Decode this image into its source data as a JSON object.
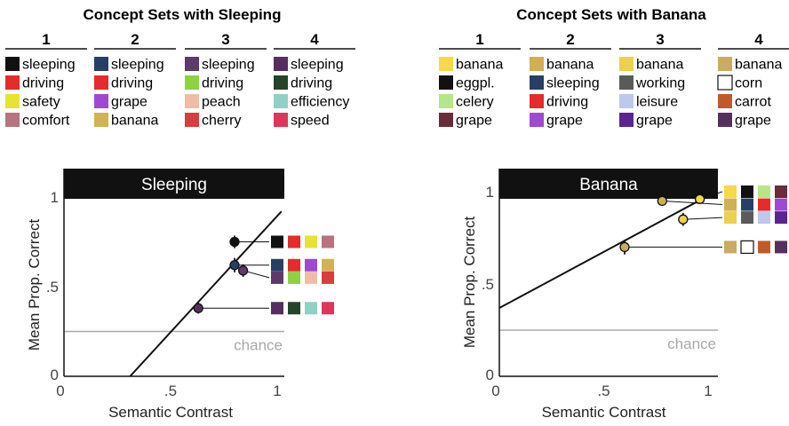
{
  "chart_data": [
    {
      "type": "scatter",
      "title": "Sleeping",
      "xlabel": "Semantic Contrast",
      "ylabel": "Mean Prop. Correct",
      "xlim": [
        0,
        1
      ],
      "ylim": [
        0,
        1
      ],
      "x_ticks": [
        "0",
        ".5",
        "1"
      ],
      "y_ticks": [
        "0",
        ".5",
        "1"
      ],
      "chance_label": "chance",
      "chance_value": 0.25,
      "fit_line": [
        [
          0.31,
          0
        ],
        [
          1.02,
          0.92
        ]
      ],
      "legend": {
        "title": "Concept Sets with Sleeping",
        "columns": [
          {
            "label": "1",
            "items": [
              {
                "label": "sleeping",
                "color": "#111111"
              },
              {
                "label": "driving",
                "color": "#e52b2b"
              },
              {
                "label": "safety",
                "color": "#e6e334"
              },
              {
                "label": "comfort",
                "color": "#b9737e"
              }
            ]
          },
          {
            "label": "2",
            "items": [
              {
                "label": "sleeping",
                "color": "#283f64"
              },
              {
                "label": "driving",
                "color": "#e52b2b"
              },
              {
                "label": "grape",
                "color": "#9e4ad0"
              },
              {
                "label": "banana",
                "color": "#d2b254"
              }
            ]
          },
          {
            "label": "3",
            "items": [
              {
                "label": "sleeping",
                "color": "#5e3a6a"
              },
              {
                "label": "driving",
                "color": "#8ed244"
              },
              {
                "label": "peach",
                "color": "#efbda7"
              },
              {
                "label": "cherry",
                "color": "#d83e3e"
              }
            ]
          },
          {
            "label": "4",
            "items": [
              {
                "label": "sleeping",
                "color": "#55305e"
              },
              {
                "label": "driving",
                "color": "#26442a"
              },
              {
                "label": "efficiency",
                "color": "#8fd1c5"
              },
              {
                "label": "speed",
                "color": "#dc3759"
              }
            ]
          }
        ]
      },
      "points": [
        {
          "x": 0.8,
          "y": 0.75,
          "color": "#111111",
          "err": 0.035,
          "set": 1,
          "palette": [
            "#111111",
            "#e52b2b",
            "#e6e334",
            "#b9737e"
          ],
          "palette_y": 0.75
        },
        {
          "x": 0.8,
          "y": 0.62,
          "color": "#283f64",
          "err": 0.04,
          "set": 2,
          "palette": [
            "#283f64",
            "#e52b2b",
            "#9e4ad0",
            "#d2b254"
          ],
          "palette_y": 0.62
        },
        {
          "x": 0.84,
          "y": 0.59,
          "color": "#5e3a6a",
          "err": 0.035,
          "set": 3,
          "palette": [
            "#5e3a6a",
            "#8ed244",
            "#efbda7",
            "#d83e3e"
          ],
          "palette_y": 0.55
        },
        {
          "x": 0.63,
          "y": 0.38,
          "color": "#55305e",
          "err": 0.03,
          "set": 4,
          "palette": [
            "#55305e",
            "#26442a",
            "#8fd1c5",
            "#dc3759"
          ],
          "palette_y": 0.38
        }
      ]
    },
    {
      "type": "scatter",
      "title": "Banana",
      "xlabel": "Semantic Contrast",
      "ylabel": "Mean Prop. Correct",
      "xlim": [
        0,
        1
      ],
      "ylim": [
        0,
        1
      ],
      "x_ticks": [
        "0",
        ".5",
        "1"
      ],
      "y_ticks": [
        "0",
        ".5",
        "1"
      ],
      "chance_label": "chance",
      "chance_value": 0.25,
      "fit_line": [
        [
          0,
          0.37
        ],
        [
          1.02,
          0.99
        ]
      ],
      "legend": {
        "title": "Concept Sets with Banana",
        "columns": [
          {
            "label": "1",
            "items": [
              {
                "label": "banana",
                "color": "#f5d94a"
              },
              {
                "label": "eggpl.",
                "color": "#111111"
              },
              {
                "label": "celery",
                "color": "#b7e58a"
              },
              {
                "label": "grape",
                "color": "#6a2b3a"
              }
            ]
          },
          {
            "label": "2",
            "items": [
              {
                "label": "banana",
                "color": "#cfb052"
              },
              {
                "label": "sleeping",
                "color": "#283f64"
              },
              {
                "label": "driving",
                "color": "#e52b2b"
              },
              {
                "label": "grape",
                "color": "#9e4ad0"
              }
            ]
          },
          {
            "label": "3",
            "items": [
              {
                "label": "banana",
                "color": "#ecd052"
              },
              {
                "label": "working",
                "color": "#5a5a5a"
              },
              {
                "label": "leisure",
                "color": "#bcc8ec"
              },
              {
                "label": "grape",
                "color": "#5b2490"
              }
            ]
          },
          {
            "label": "4",
            "items": [
              {
                "label": "banana",
                "color": "#c9ab62"
              },
              {
                "label": "corn",
                "color": "#ffffff"
              },
              {
                "label": "carrot",
                "color": "#c05a2a"
              },
              {
                "label": "grape",
                "color": "#55305e"
              }
            ]
          }
        ]
      },
      "points": [
        {
          "x": 0.96,
          "y": 0.96,
          "color": "#f5d94a",
          "err": 0.02,
          "set": 1,
          "palette": [
            "#f5d94a",
            "#111111",
            "#b7e58a",
            "#6a2b3a"
          ],
          "palette_y": 1.0
        },
        {
          "x": 0.78,
          "y": 0.95,
          "color": "#cfb052",
          "err": 0.02,
          "set": 2,
          "palette": [
            "#cfb052",
            "#283f64",
            "#e52b2b",
            "#9e4ad0"
          ],
          "palette_y": 0.93
        },
        {
          "x": 0.88,
          "y": 0.85,
          "color": "#ecd052",
          "err": 0.035,
          "set": 3,
          "palette": [
            "#ecd052",
            "#5a5a5a",
            "#bcc8ec",
            "#5b2490"
          ],
          "palette_y": 0.86
        },
        {
          "x": 0.6,
          "y": 0.7,
          "color": "#c9ab62",
          "err": 0.04,
          "set": 4,
          "palette": [
            "#c9ab62",
            "#ffffff",
            "#c05a2a",
            "#55305e"
          ],
          "palette_y": 0.7
        }
      ]
    }
  ]
}
